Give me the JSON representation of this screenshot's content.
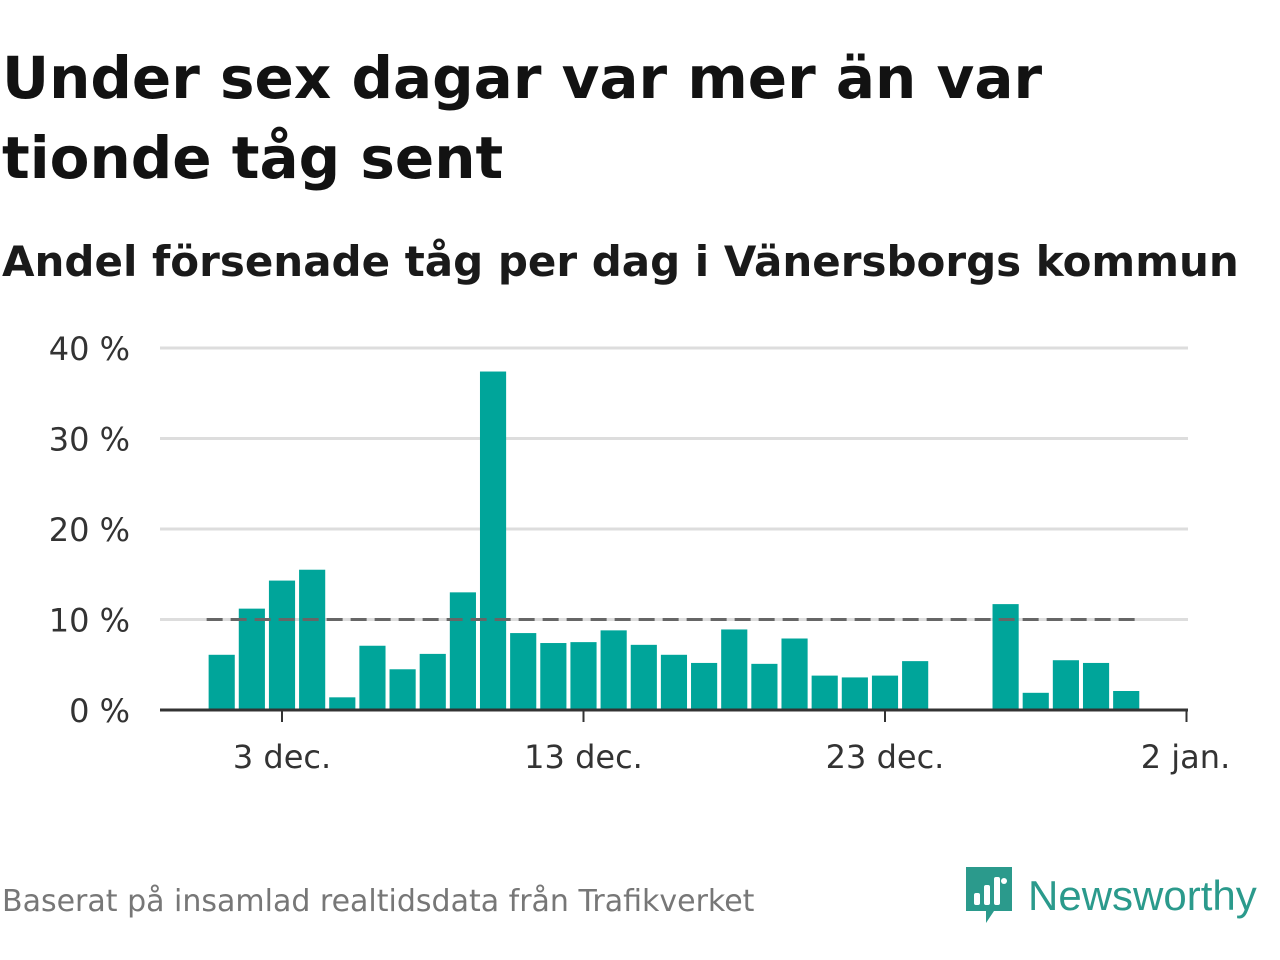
{
  "title": "Under sex dagar var mer än var tionde tåg sent",
  "subtitle": "Andel försenade tåg per dag i Vänersborgs kommun",
  "source": "Baserat på insamlad realtidsdata från Trafikverket",
  "brand": {
    "name": "Newsworthy",
    "icon": "newsworthy-logo-icon",
    "color": "#2b9a8c"
  },
  "colors": {
    "bar": "#00a59a",
    "reference_line": "#666666",
    "grid": "#dddddd",
    "axis": "#333333"
  },
  "chart_data": {
    "type": "bar",
    "dates": [
      "2023-12-01",
      "2023-12-02",
      "2023-12-03",
      "2023-12-04",
      "2023-12-05",
      "2023-12-06",
      "2023-12-07",
      "2023-12-08",
      "2023-12-09",
      "2023-12-10",
      "2023-12-11",
      "2023-12-12",
      "2023-12-13",
      "2023-12-14",
      "2023-12-15",
      "2023-12-16",
      "2023-12-17",
      "2023-12-18",
      "2023-12-19",
      "2023-12-20",
      "2023-12-21",
      "2023-12-22",
      "2023-12-23",
      "2023-12-24",
      "2023-12-25",
      "2023-12-26",
      "2023-12-27",
      "2023-12-28",
      "2023-12-29",
      "2023-12-30",
      "2023-12-31"
    ],
    "values": [
      6.1,
      11.2,
      14.3,
      15.5,
      1.4,
      7.1,
      4.5,
      6.2,
      13.0,
      37.4,
      8.5,
      7.4,
      7.5,
      8.8,
      7.2,
      6.1,
      5.2,
      8.9,
      5.1,
      7.9,
      3.8,
      3.6,
      3.8,
      5.4,
      null,
      null,
      11.7,
      1.9,
      5.5,
      5.2,
      2.1
    ],
    "unit": "%",
    "ylim": [
      0,
      40
    ],
    "yticks": [
      0,
      10,
      20,
      30,
      40
    ],
    "ytick_labels": [
      "0 %",
      "10 %",
      "20 %",
      "30 %",
      "40 %"
    ],
    "xticks": [
      "2023-12-03",
      "2023-12-13",
      "2023-12-23",
      "2024-01-02"
    ],
    "xtick_labels": [
      "3 dec.",
      "13 dec.",
      "23 dec.",
      "2 jan."
    ],
    "reference_line": 10,
    "grid": true
  }
}
